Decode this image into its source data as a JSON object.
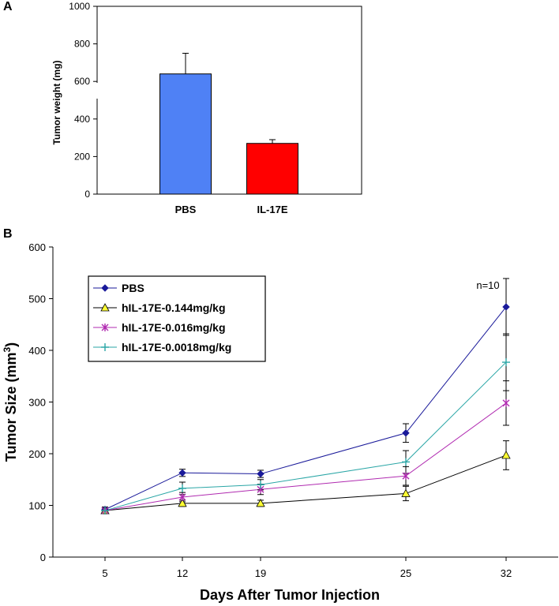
{
  "chart_data": [
    {
      "panel": "A",
      "type": "bar",
      "title": "",
      "xlabel": "",
      "ylabel": "Tumor weight (mg)",
      "categories": [
        "PBS",
        "IL-17E"
      ],
      "values": [
        640,
        270
      ],
      "errors": [
        110,
        20
      ],
      "colors": [
        "#4F81F5",
        "#FF0000"
      ],
      "ylim": [
        0,
        1000
      ],
      "yticks": [
        0,
        200,
        400,
        600,
        800,
        1000
      ],
      "grid": false
    },
    {
      "panel": "B",
      "type": "line",
      "title": "",
      "xlabel": "Days After Tumor Injection",
      "ylabel": "Tumor Size (mm3)",
      "ylabel_main": "Tumor Size (mm",
      "ylabel_sup": "3",
      "ylabel_close": ")",
      "x": [
        5,
        12,
        19,
        25,
        32
      ],
      "ylim": [
        0,
        600
      ],
      "yticks": [
        0,
        100,
        200,
        300,
        400,
        500,
        600
      ],
      "annotation": "n=10",
      "legend_position": "top-left",
      "grid": false,
      "series": [
        {
          "name": "PBS",
          "values": [
            92,
            163,
            161,
            240,
            484
          ],
          "errors": [
            5,
            7,
            7,
            18,
            55
          ],
          "color": "#1A1A9A",
          "marker": "diamond"
        },
        {
          "name": "hIL-17E-0.144mg/kg",
          "values": [
            90,
            104,
            104,
            123,
            197
          ],
          "errors": [
            4,
            6,
            6,
            14,
            28
          ],
          "color": "#000000",
          "marker": "triangle"
        },
        {
          "name": "hIL-17E-0.016mg/kg",
          "values": [
            90,
            116,
            131,
            157,
            298
          ],
          "errors": [
            4,
            9,
            10,
            18,
            43
          ],
          "color": "#B02AB0",
          "marker": "star"
        },
        {
          "name": "hIL-17E-0.0018mg/kg",
          "values": [
            90,
            133,
            140,
            184,
            377
          ],
          "errors": [
            4,
            12,
            10,
            22,
            55
          ],
          "color": "#2AA6A6",
          "marker": "plus"
        }
      ]
    }
  ]
}
